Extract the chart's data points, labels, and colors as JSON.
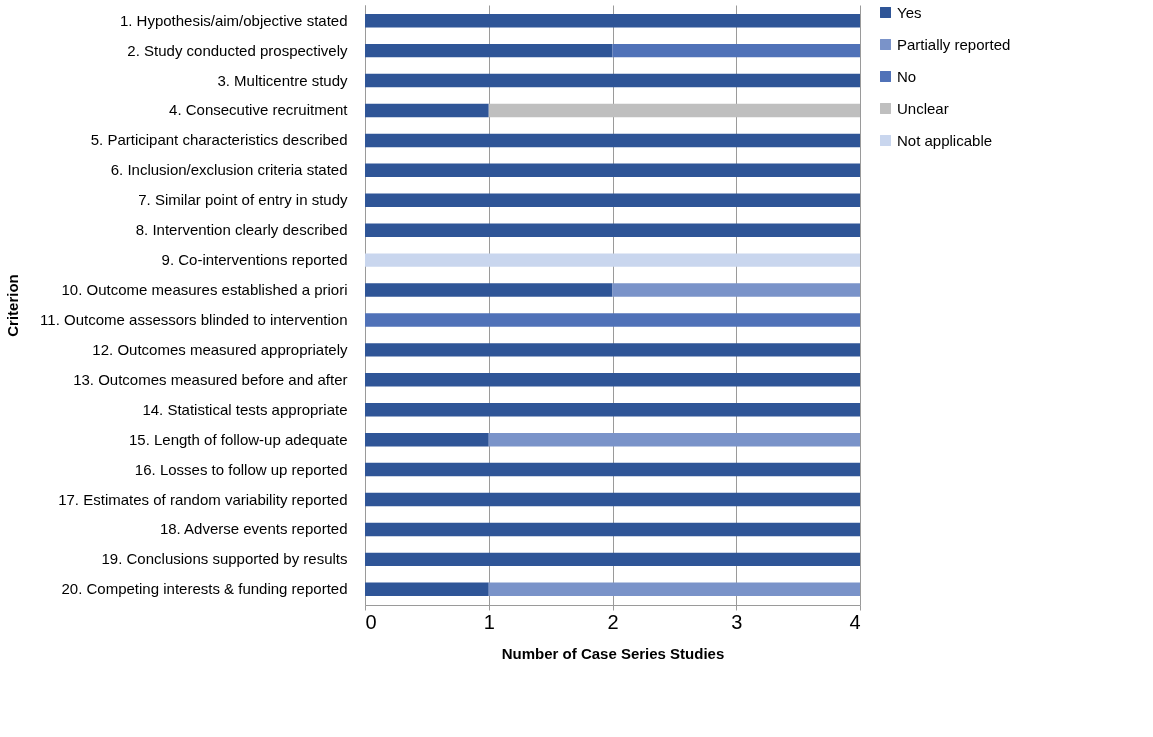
{
  "chart_data": {
    "type": "bar",
    "orientation": "horizontal",
    "stacked": true,
    "xlabel": "Number of Case Series Studies",
    "ylabel": "Criterion",
    "categories": [
      "1. Hypothesis/aim/objective stated",
      "2. Study conducted prospectively",
      "3. Multicentre study",
      "4. Consecutive recruitment",
      "5. Participant characteristics described",
      "6. Inclusion/exclusion criteria stated",
      "7. Similar point of entry in study",
      "8. Intervention clearly described",
      "9. Co-interventions reported",
      "10. Outcome measures established a priori",
      "11. Outcome assessors blinded to intervention",
      "12. Outcomes measured appropriately",
      "13. Outcomes measured before and after",
      "14. Statistical tests appropriate",
      "15. Length of follow-up adequate",
      "16. Losses to follow up reported",
      "17. Estimates of random variability reported",
      "18. Adverse events reported",
      "19. Conclusions supported by results",
      "20. Competing interests & funding reported"
    ],
    "series": [
      {
        "name": "Yes",
        "color": "#2f5597",
        "values": [
          4,
          2,
          4,
          1,
          4,
          4,
          4,
          4,
          null,
          2,
          null,
          4,
          4,
          4,
          1,
          4,
          4,
          4,
          4,
          1
        ]
      },
      {
        "name": "Partially reported",
        "color": "#7a93c9",
        "values": [
          null,
          null,
          null,
          null,
          null,
          null,
          null,
          null,
          null,
          2,
          null,
          null,
          null,
          null,
          3,
          null,
          null,
          null,
          null,
          3
        ]
      },
      {
        "name": "No",
        "color": "#5072b8",
        "values": [
          null,
          2,
          null,
          null,
          null,
          null,
          null,
          null,
          null,
          null,
          4,
          null,
          null,
          null,
          null,
          null,
          null,
          null,
          null,
          null
        ]
      },
      {
        "name": "Unclear",
        "color": "#bfbfbf",
        "values": [
          null,
          null,
          null,
          3,
          null,
          null,
          null,
          null,
          null,
          null,
          null,
          null,
          null,
          null,
          null,
          null,
          null,
          null,
          null,
          null
        ]
      },
      {
        "name": "Not applicable",
        "color": "#c9d6ee",
        "values": [
          null,
          null,
          null,
          null,
          null,
          null,
          null,
          null,
          4,
          null,
          null,
          null,
          null,
          null,
          null,
          null,
          null,
          null,
          null,
          null
        ]
      }
    ],
    "xlim": [
      0,
      4
    ],
    "xticks": [
      0,
      1,
      2,
      3,
      4
    ],
    "grid": "x",
    "legend": "right"
  }
}
